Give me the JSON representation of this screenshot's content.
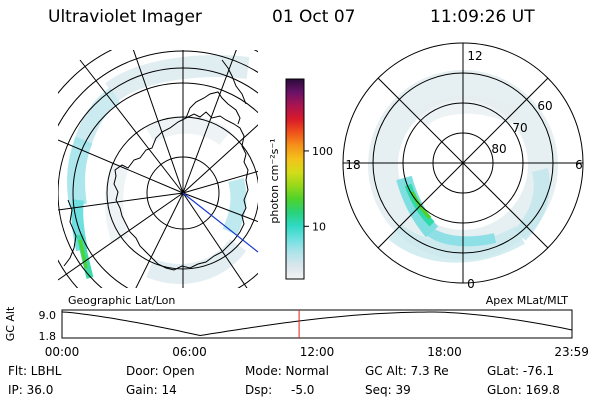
{
  "header": {
    "instrument": "Ultraviolet Imager",
    "date": "01 Oct 07",
    "time": "11:09:26 UT"
  },
  "colorbar": {
    "unit_label": "photon cm⁻²s⁻¹",
    "ticks": [
      {
        "label": "100",
        "value": 100
      },
      {
        "label": "10",
        "value": 10
      }
    ],
    "gradient_colors": [
      "#f2f2f2",
      "#d9e6ec",
      "#aee3ea",
      "#6ee0e0",
      "#2fd9c3",
      "#29d27a",
      "#4fd22a",
      "#98d81a",
      "#d3dc1a",
      "#f4c21a",
      "#f5921a",
      "#ef521a",
      "#d81a2a",
      "#aa1450",
      "#6a1268",
      "#2a0b3a"
    ]
  },
  "geo_panel": {
    "label": "Geographic Lat/Lon"
  },
  "polar_panel": {
    "label": "Apex MLat/MLT",
    "mlt_labels": [
      "12",
      "18",
      "6",
      "0"
    ],
    "mlat_labels": [
      "60",
      "70",
      "80"
    ]
  },
  "timeline": {
    "axis_label": "GC Alt",
    "y_ticks": [
      "9.0",
      "1.8"
    ],
    "x_ticks": [
      "00:00",
      "06:00",
      "12:00",
      "18:00",
      "23:59"
    ],
    "current_time_hours": 11.157,
    "marker_color": "#e0201a"
  },
  "info": {
    "flt": "Flt: LBHL",
    "ip": "IP: 36.0",
    "door": "Door: Open",
    "gain": "Gain: 14",
    "mode": "Mode: Normal",
    "dsp_label": "Dsp:",
    "dsp_value": "-5.0",
    "gc_alt": "GC Alt: 7.3 Re",
    "seq": "Seq: 39",
    "glat": "GLat: -76.1",
    "glon": "GLon: 169.8"
  }
}
